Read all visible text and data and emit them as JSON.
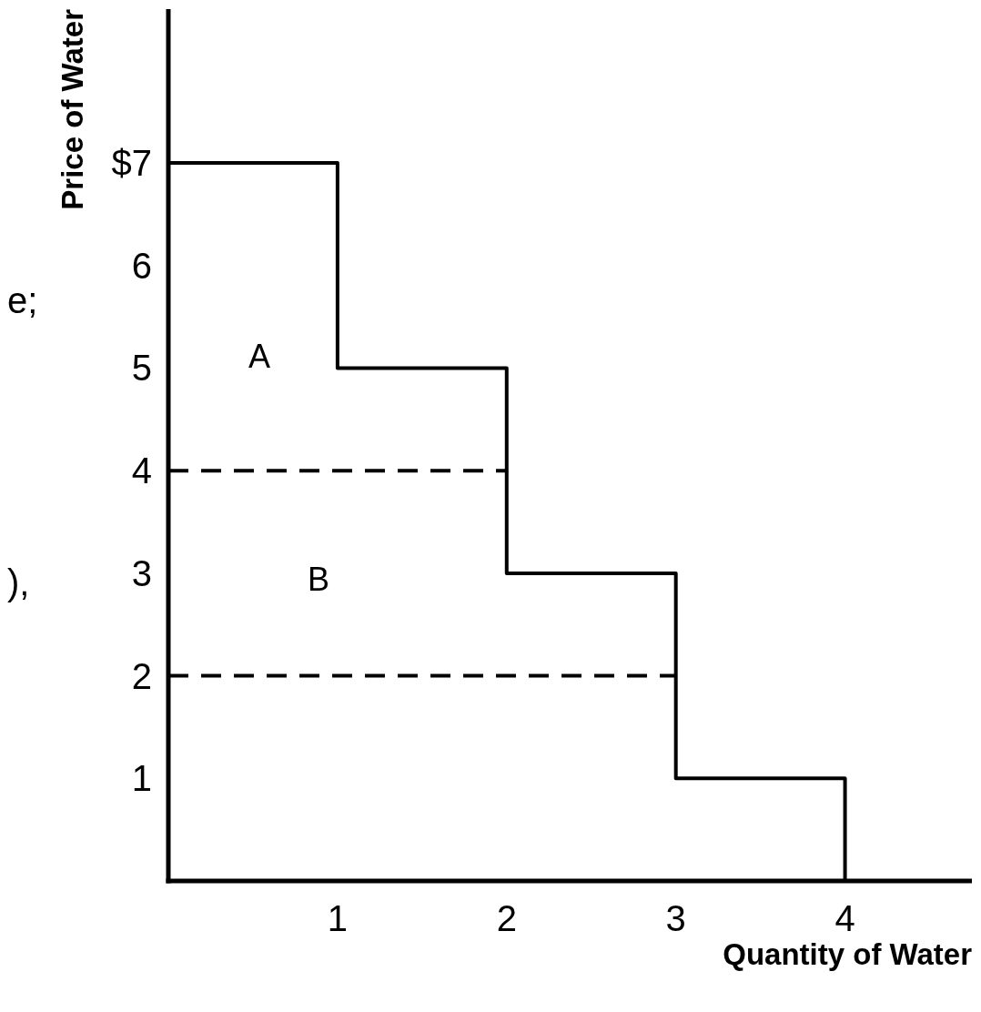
{
  "chart_data": {
    "type": "step",
    "xlabel": "Quantity of Water",
    "ylabel": "Price of Water",
    "x": [
      0,
      1,
      2,
      3,
      4
    ],
    "series": [
      {
        "color": "#000000",
        "values": [
          7,
          5,
          3,
          1,
          0
        ]
      },
      {
        "type": "line",
        "x": [
          0,
          2
        ],
        "values": [
          4,
          4
        ],
        "color": "#000000",
        "line_style": "dashed"
      },
      {
        "type": "line",
        "x": [
          0,
          3
        ],
        "values": [
          2,
          2
        ],
        "color": "#000000",
        "line_style": "dashed"
      }
    ],
    "xlim": [
      0,
      4.75
    ],
    "ylim": [
      0,
      8.5
    ],
    "xticks": [
      1,
      2,
      3,
      4
    ],
    "yticks": [
      1,
      2,
      3,
      4,
      5,
      6,
      {
        "value": 7,
        "label": "$7"
      }
    ],
    "annotations": [
      "A",
      "B",
      "e;",
      "),"
    ],
    "grid": false
  }
}
